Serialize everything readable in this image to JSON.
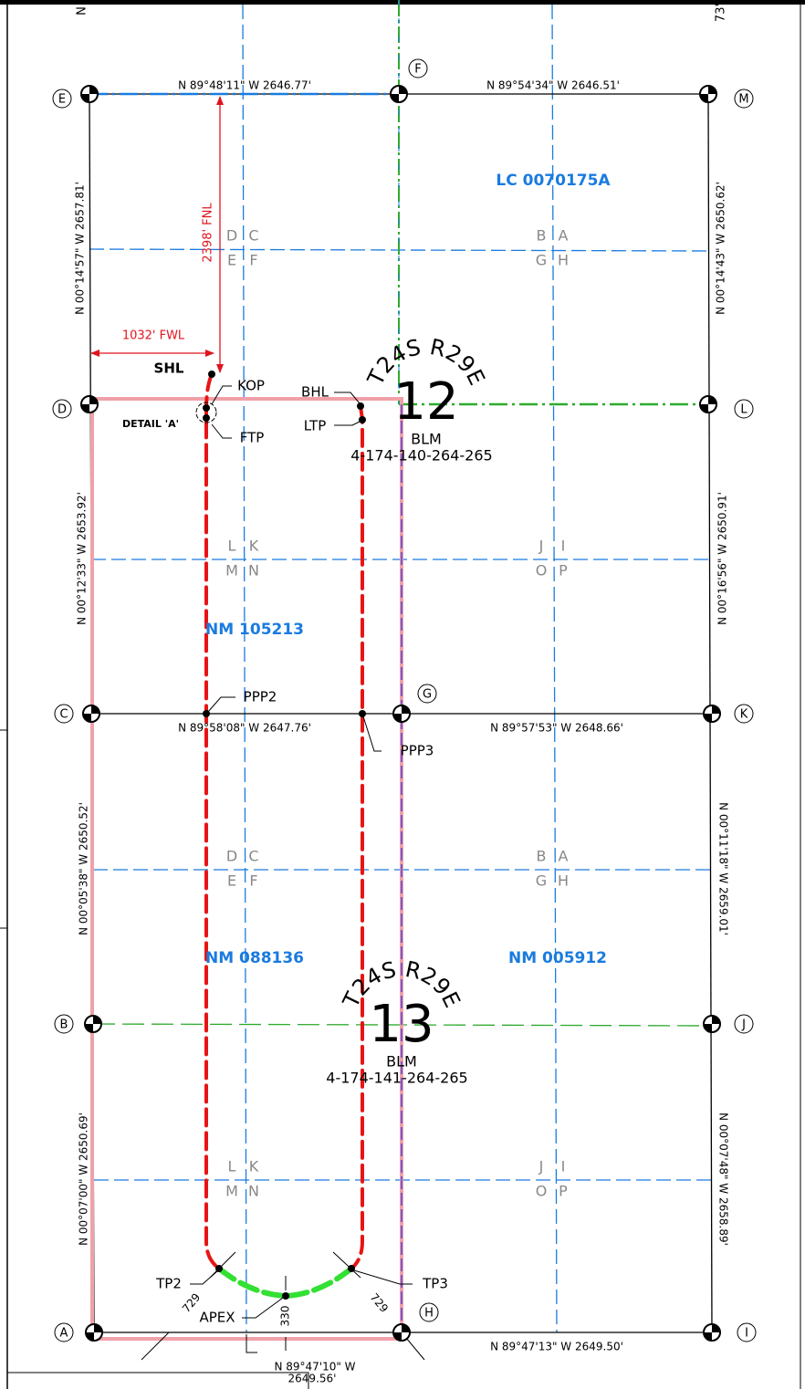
{
  "edge_labels": [
    "N",
    "73'"
  ],
  "corners": [
    "E",
    "F",
    "M",
    "D",
    "L",
    "C",
    "G",
    "K",
    "B",
    "J",
    "A",
    "H",
    "I"
  ],
  "bearings": [
    "N 89°48'11\" W  2646.77'",
    "N 89°54'34\" W  2646.51'",
    "N 00°14'57\" W  2657.81'",
    "N 00°14'43\" W  2650.62'",
    "N 00°12'33\" W  2653.92'",
    "N 00°16'56\" W  2650.91'",
    "N 89°58'08\" W  2647.76'",
    "N 89°57'53\" W  2648.66'",
    "N 00°05'38\" W  2650.52'",
    "N 00°11'18\" W  2659.01'",
    "N 00°07'00\" W  2650.69'",
    "N 00°07'48\" W  2658.89'",
    "N 89°47'10\" W",
    "2649.56'",
    "N 89°47'13\" W  2649.50'"
  ],
  "dimensions": [
    "2398' FNL",
    "1032' FWL"
  ],
  "quarters": [
    [
      "D",
      "C",
      "E",
      "F"
    ],
    [
      "B",
      "A",
      "G",
      "H"
    ],
    [
      "L",
      "K",
      "M",
      "N"
    ],
    [
      "J",
      "I",
      "O",
      "P"
    ],
    [
      "D",
      "C",
      "E",
      "F"
    ],
    [
      "B",
      "A",
      "G",
      "H"
    ],
    [
      "L",
      "K",
      "M",
      "N"
    ],
    [
      "J",
      "I",
      "O",
      "P"
    ]
  ],
  "leases": [
    "LC 0070175A",
    "NM 105213",
    "NM 088136",
    "NM 005912"
  ],
  "sections": [
    {
      "township": "T24S R29E",
      "number": "12",
      "agency": "BLM",
      "id": "4-174-140-264-265"
    },
    {
      "township": "T24S R29E",
      "number": "13",
      "agency": "BLM",
      "id": "4-174-141-264-265"
    }
  ],
  "points": [
    "SHL",
    "KOP",
    "FTP",
    "DETAIL 'A'",
    "BHL",
    "LTP",
    "PPP2",
    "PPP3",
    "TP2",
    "TP3",
    "APEX"
  ],
  "offsets": [
    "729",
    "729",
    "330"
  ]
}
